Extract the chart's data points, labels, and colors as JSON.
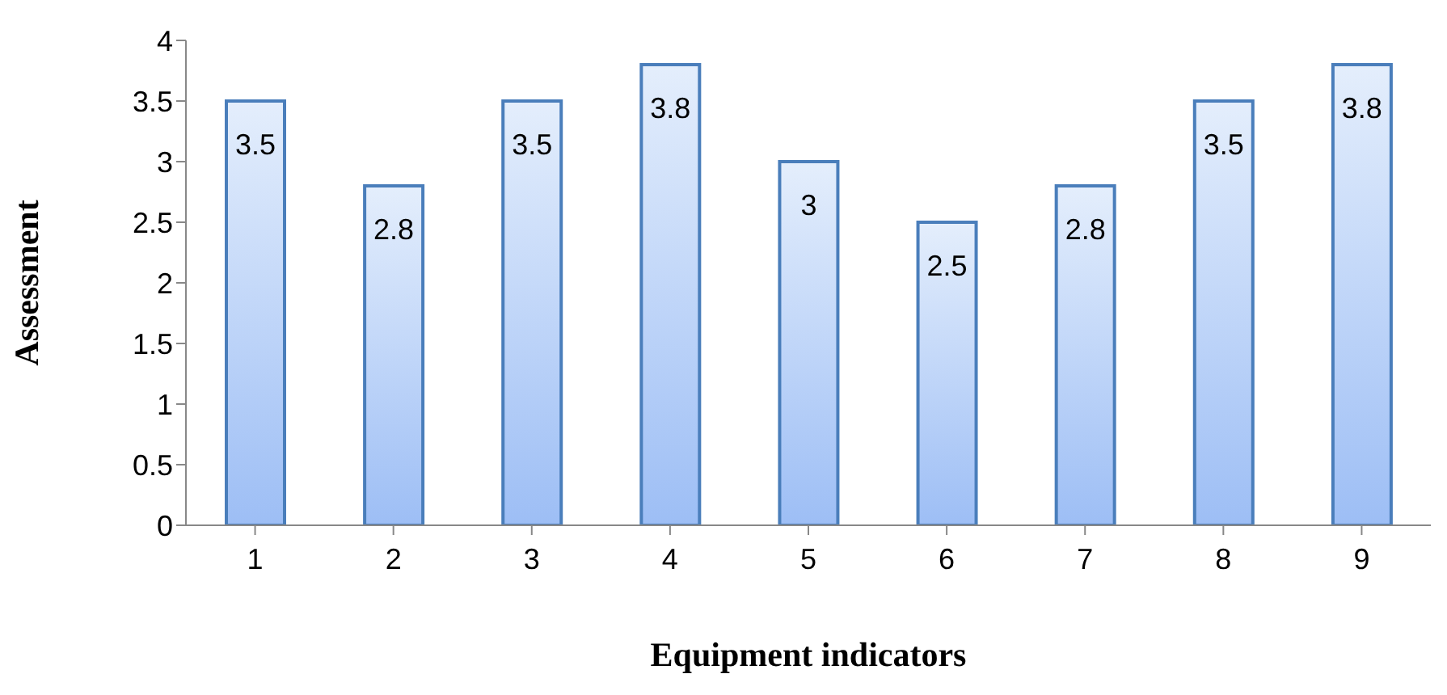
{
  "chart_data": {
    "type": "bar",
    "xlabel": "Equipment indicators",
    "ylabel": "Assessment",
    "categories": [
      "1",
      "2",
      "3",
      "4",
      "5",
      "6",
      "7",
      "8",
      "9"
    ],
    "values": [
      3.5,
      2.8,
      3.5,
      3.8,
      3,
      2.5,
      2.8,
      3.5,
      3.8
    ],
    "color": "#4a7ebb",
    "ylim": [
      0,
      4
    ],
    "yticks": [
      0,
      0.5,
      1,
      1.5,
      2,
      2.5,
      3,
      3.5,
      4
    ],
    "grid": false,
    "legend": false,
    "data_labels": true
  }
}
